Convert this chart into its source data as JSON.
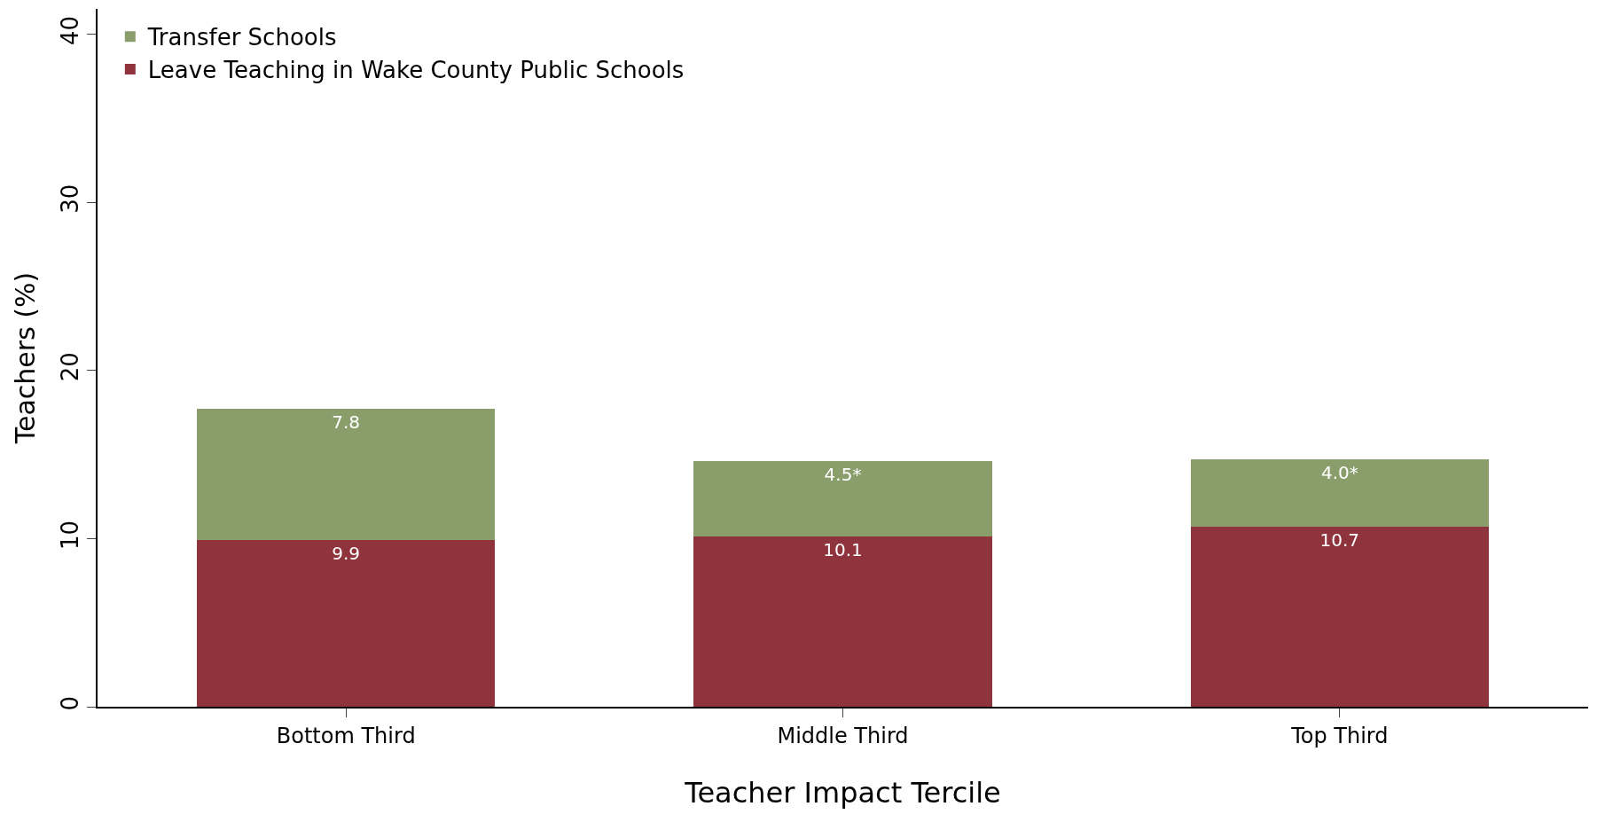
{
  "chart_data": {
    "type": "bar",
    "stacked": true,
    "xlabel": "Teacher Impact Tercile",
    "ylabel": "Teachers (%)",
    "categories": [
      "Bottom Third",
      "Middle Third",
      "Top Third"
    ],
    "series": [
      {
        "name": "Leave Teaching in Wake County Public Schools",
        "color": "#8f343c",
        "values": [
          9.9,
          10.1,
          10.7
        ],
        "value_labels": [
          "9.9",
          "10.1",
          "10.7"
        ]
      },
      {
        "name": "Transfer Schools",
        "color": "#8a9e6c",
        "values": [
          7.8,
          4.5,
          4.0
        ],
        "value_labels": [
          "7.8",
          "4.5*",
          "4.0*"
        ]
      }
    ],
    "ylim": [
      0,
      41.5
    ],
    "yticks": [
      0,
      10,
      20,
      30,
      40
    ],
    "legend": "top left"
  }
}
